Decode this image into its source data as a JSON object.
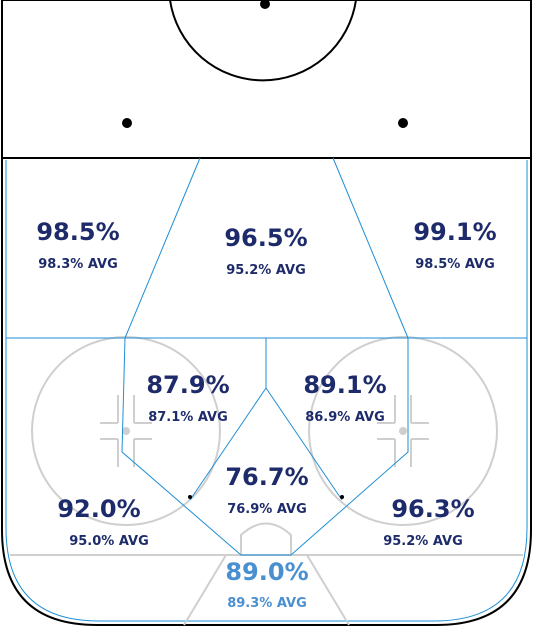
{
  "colors": {
    "dark_text": "#1e2b6b",
    "light_text": "#4a8fd0",
    "zone_lines": "#1f8fd6",
    "rink_lines": "#cfcfcf",
    "board": "#000000"
  },
  "zones": [
    {
      "id": "left-point",
      "pct": "98.5%",
      "avg": "98.3% AVG"
    },
    {
      "id": "center-point",
      "pct": "96.5%",
      "avg": "95.2% AVG"
    },
    {
      "id": "right-point",
      "pct": "99.1%",
      "avg": "98.5% AVG"
    },
    {
      "id": "left-high-slot",
      "pct": "87.9%",
      "avg": "87.1% AVG"
    },
    {
      "id": "right-high-slot",
      "pct": "89.1%",
      "avg": "86.9% AVG"
    },
    {
      "id": "slot",
      "pct": "76.7%",
      "avg": "76.9% AVG"
    },
    {
      "id": "left-circle",
      "pct": "92.0%",
      "avg": "95.0% AVG"
    },
    {
      "id": "right-circle",
      "pct": "96.3%",
      "avg": "95.2% AVG"
    },
    {
      "id": "crease",
      "pct": "89.0%",
      "avg": "89.3% AVG"
    }
  ]
}
